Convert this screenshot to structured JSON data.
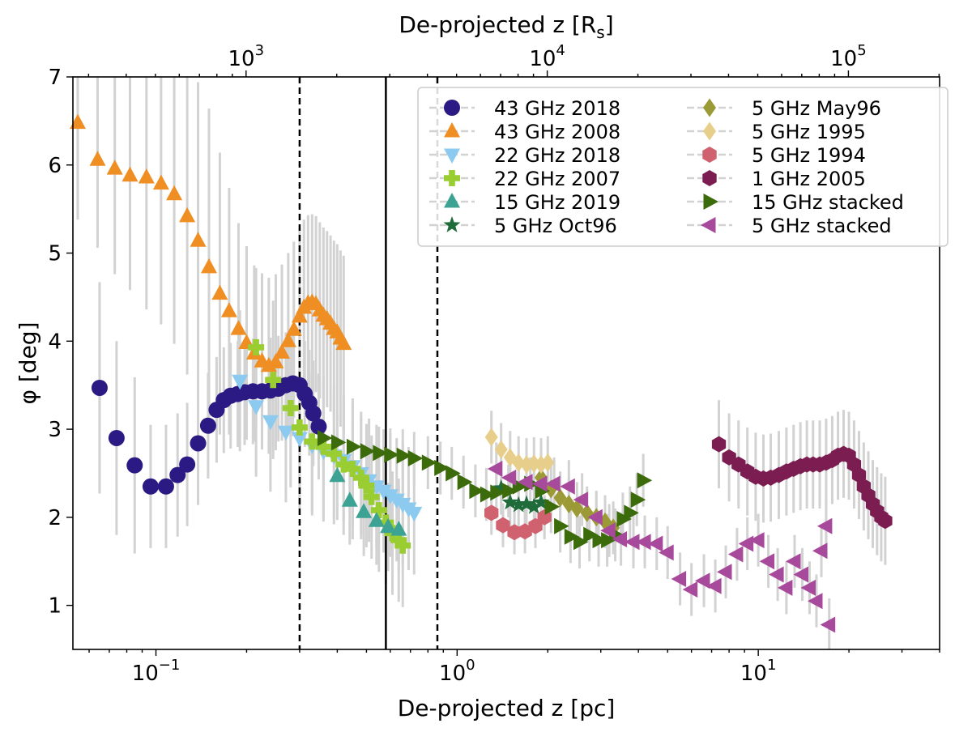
{
  "chart_data": {
    "type": "scatter",
    "xlabel": "De-projected z [pc]",
    "x2label": "De-projected z [R",
    "x2label_sub": "s",
    "x2label_end": "]",
    "ylabel": "φ [deg]",
    "xscale": "log",
    "xlim": [
      0.053,
      40
    ],
    "ylim": [
      0.5,
      7
    ],
    "x2_per_x": 5020,
    "legend_position": "upper-right",
    "legend_columns": 2,
    "grid": false,
    "x_ticks": [
      {
        "v": 0.1,
        "b": "10",
        "e": "−1"
      },
      {
        "v": 1,
        "b": "10",
        "e": "0"
      },
      {
        "v": 10,
        "b": "10",
        "e": "1"
      }
    ],
    "x2_ticks": [
      {
        "v": 1000,
        "b": "10",
        "e": "3"
      },
      {
        "v": 10000,
        "b": "10",
        "e": "4"
      },
      {
        "v": 100000,
        "b": "10",
        "e": "5"
      }
    ],
    "y_ticks": [
      "1",
      "2",
      "3",
      "4",
      "5",
      "6",
      "7"
    ],
    "vlines": [
      {
        "x": 0.3,
        "style": "dashed"
      },
      {
        "x": 0.58,
        "style": "solid"
      },
      {
        "x": 0.86,
        "style": "dashed"
      }
    ],
    "series": [
      {
        "name": "43 GHz 2018",
        "marker": "circle",
        "color": "#2b1a84",
        "x": [
          0.065,
          0.074,
          0.085,
          0.096,
          0.108,
          0.118,
          0.127,
          0.138,
          0.149,
          0.159,
          0.168,
          0.177,
          0.187,
          0.197,
          0.21,
          0.225,
          0.24,
          0.255,
          0.27,
          0.285,
          0.3,
          0.312,
          0.323,
          0.333,
          0.347
        ],
        "y": [
          3.47,
          2.9,
          2.59,
          2.35,
          2.35,
          2.48,
          2.6,
          2.84,
          3.04,
          3.22,
          3.33,
          3.38,
          3.4,
          3.42,
          3.43,
          3.43,
          3.44,
          3.46,
          3.5,
          3.52,
          3.5,
          3.4,
          3.3,
          3.18,
          3.03
        ],
        "err": [
          1.2,
          1.1,
          1.0,
          0.7,
          0.7,
          0.7,
          0.7,
          0.7,
          0.6,
          0.6,
          0.6,
          0.6,
          0.6,
          0.6,
          0.6,
          0.6,
          0.6,
          0.6,
          0.6,
          0.6,
          0.6,
          0.6,
          0.6,
          0.6,
          0.6
        ]
      },
      {
        "name": "43 GHz 2008",
        "marker": "triangle-up",
        "color": "#ef8e22",
        "x": [
          0.055,
          0.064,
          0.073,
          0.082,
          0.093,
          0.104,
          0.115,
          0.127,
          0.138,
          0.15,
          0.163,
          0.175,
          0.188,
          0.2,
          0.212,
          0.225,
          0.237,
          0.25,
          0.262,
          0.275,
          0.287,
          0.3,
          0.31,
          0.32,
          0.33,
          0.34,
          0.35,
          0.36,
          0.37,
          0.38,
          0.39,
          0.4,
          0.41,
          0.42
        ],
        "y": [
          6.48,
          6.06,
          5.96,
          5.88,
          5.86,
          5.79,
          5.67,
          5.42,
          5.14,
          4.84,
          4.54,
          4.34,
          4.14,
          3.98,
          3.86,
          3.77,
          3.72,
          3.76,
          3.87,
          4.0,
          4.13,
          4.28,
          4.38,
          4.43,
          4.44,
          4.42,
          4.35,
          4.29,
          4.25,
          4.2,
          4.14,
          4.1,
          4.03,
          3.97
        ],
        "err": [
          1.1,
          1.0,
          1.2,
          1.3,
          1.5,
          1.6,
          1.7,
          1.8,
          1.8,
          1.8,
          1.6,
          1.4,
          1.2,
          1.1,
          1.0,
          1.0,
          1.0,
          1.0,
          1.0,
          1.0,
          1.0,
          1.0,
          1.0,
          1.0,
          1.0,
          1.0,
          1.0,
          1.0,
          1.0,
          1.0,
          1.0,
          1.0,
          1.0,
          1.0
        ]
      },
      {
        "name": "22 GHz 2018",
        "marker": "triangle-down",
        "color": "#8ccaf0",
        "x": [
          0.19,
          0.215,
          0.24,
          0.27,
          0.3,
          0.33,
          0.36,
          0.39,
          0.42,
          0.45,
          0.48,
          0.51,
          0.54,
          0.57,
          0.6,
          0.63,
          0.66,
          0.69,
          0.72
        ],
        "y": [
          3.55,
          3.26,
          3.09,
          2.97,
          2.9,
          2.82,
          2.75,
          2.7,
          2.65,
          2.58,
          2.5,
          2.42,
          2.35,
          2.3,
          2.25,
          2.2,
          2.15,
          2.1,
          2.05
        ],
        "err": [
          0.8,
          0.8,
          0.8,
          0.8,
          0.8,
          0.8,
          0.8,
          0.7,
          0.7,
          0.7,
          0.7,
          0.7,
          0.7,
          0.7,
          0.7,
          0.7,
          0.7,
          0.7,
          0.7
        ]
      },
      {
        "name": "22 GHz 2007",
        "marker": "plus",
        "color": "#9acd32",
        "x": [
          0.215,
          0.245,
          0.28,
          0.3,
          0.33,
          0.36,
          0.39,
          0.42,
          0.45,
          0.48,
          0.5,
          0.52,
          0.55,
          0.58,
          0.61,
          0.64,
          0.66
        ],
        "y": [
          3.93,
          3.56,
          3.24,
          3.02,
          2.86,
          2.8,
          2.72,
          2.6,
          2.55,
          2.45,
          2.36,
          2.23,
          2.08,
          1.94,
          1.82,
          1.74,
          1.68
        ],
        "err": [
          0.9,
          0.9,
          0.9,
          0.8,
          0.8,
          0.8,
          0.8,
          0.8,
          0.8,
          0.7,
          0.7,
          0.7,
          0.7,
          0.7,
          0.7,
          0.7,
          0.7
        ]
      },
      {
        "name": "15 GHz 2019",
        "marker": "triangle-up",
        "color": "#3ca394",
        "x": [
          0.4,
          0.44,
          0.49,
          0.54,
          0.59,
          0.64
        ],
        "y": [
          2.47,
          2.19,
          2.06,
          1.96,
          1.89,
          1.86
        ],
        "err": [
          0.5,
          0.5,
          0.5,
          0.5,
          0.5,
          0.5
        ]
      },
      {
        "name": "5 GHz Oct96",
        "marker": "star",
        "color": "#1f6b3a",
        "x": [
          1.4,
          1.5,
          1.6,
          1.7,
          1.8,
          1.9
        ],
        "y": [
          2.33,
          2.17,
          2.14,
          2.15,
          2.12,
          2.17
        ],
        "err": [
          0.3,
          0.3,
          0.3,
          0.3,
          0.3,
          0.3
        ]
      },
      {
        "name": "5 GHz May96",
        "marker": "diamond",
        "color": "#9c9a36",
        "x": [
          1.9,
          2.05,
          2.2,
          2.35,
          2.5,
          2.7,
          2.9,
          3.1,
          3.3
        ],
        "y": [
          2.45,
          2.32,
          2.22,
          2.15,
          2.1,
          2.05,
          2.0,
          1.95,
          1.88
        ],
        "err": [
          0.3,
          0.3,
          0.3,
          0.3,
          0.3,
          0.3,
          0.3,
          0.3,
          0.3
        ]
      },
      {
        "name": "5 GHz 1995",
        "marker": "diamond",
        "color": "#e7cf8b",
        "x": [
          1.3,
          1.4,
          1.5,
          1.6,
          1.7,
          1.8,
          1.9,
          2.0
        ],
        "y": [
          2.91,
          2.77,
          2.68,
          2.62,
          2.6,
          2.61,
          2.6,
          2.62
        ],
        "err": [
          0.3,
          0.3,
          0.3,
          0.3,
          0.3,
          0.3,
          0.3,
          0.3
        ]
      },
      {
        "name": "5 GHz 1994",
        "marker": "hexagon",
        "color": "#d0616e",
        "x": [
          1.3,
          1.42,
          1.55,
          1.68,
          1.82,
          1.95
        ],
        "y": [
          2.05,
          1.91,
          1.83,
          1.84,
          1.9,
          2.0
        ],
        "err": [
          0.25,
          0.25,
          0.25,
          0.25,
          0.25,
          0.25
        ]
      },
      {
        "name": "1 GHz 2005",
        "marker": "hexagon",
        "color": "#7c1d51",
        "x": [
          7.4,
          8.0,
          8.6,
          9.2,
          9.8,
          10.4,
          11.0,
          11.7,
          12.4,
          13.1,
          13.8,
          14.5,
          15.2,
          16.0,
          16.8,
          17.6,
          18.4,
          19.2,
          20.0,
          20.8,
          21.6,
          22.4,
          23.2,
          24.0,
          24.8,
          25.6,
          26.4
        ],
        "y": [
          2.83,
          2.68,
          2.6,
          2.52,
          2.46,
          2.44,
          2.45,
          2.48,
          2.52,
          2.55,
          2.58,
          2.6,
          2.6,
          2.6,
          2.62,
          2.65,
          2.7,
          2.72,
          2.7,
          2.6,
          2.48,
          2.35,
          2.25,
          2.15,
          2.07,
          2.0,
          1.96
        ],
        "err": [
          0.5,
          0.5,
          0.5,
          0.5,
          0.5,
          0.5,
          0.5,
          0.5,
          0.5,
          0.5,
          0.5,
          0.5,
          0.5,
          0.5,
          0.5,
          0.5,
          0.5,
          0.5,
          0.5,
          0.5,
          0.5,
          0.5,
          0.5,
          0.5,
          0.5,
          0.5,
          0.5
        ]
      },
      {
        "name": "15 GHz stacked",
        "marker": "triangle-right",
        "color": "#3b6b0a",
        "x": [
          0.36,
          0.4,
          0.45,
          0.5,
          0.55,
          0.6,
          0.66,
          0.72,
          0.8,
          0.88,
          0.96,
          1.05,
          1.15,
          1.25,
          1.35,
          1.48,
          1.6,
          1.75,
          1.9,
          2.05,
          2.2,
          2.38,
          2.55,
          2.75,
          2.95,
          3.15,
          3.35,
          3.55,
          3.75,
          3.95,
          4.15
        ],
        "y": [
          2.9,
          2.85,
          2.8,
          2.75,
          2.73,
          2.71,
          2.7,
          2.67,
          2.62,
          2.56,
          2.5,
          2.4,
          2.3,
          2.26,
          2.28,
          2.3,
          2.35,
          2.38,
          2.3,
          2.12,
          1.9,
          1.78,
          1.72,
          1.8,
          1.74,
          1.74,
          1.8,
          1.98,
          2.05,
          2.2,
          2.42
        ],
        "err": [
          0.3,
          0.3,
          0.3,
          0.3,
          0.3,
          0.3,
          0.3,
          0.3,
          0.3,
          0.3,
          0.3,
          0.3,
          0.3,
          0.3,
          0.3,
          0.3,
          0.3,
          0.3,
          0.3,
          0.3,
          0.3,
          0.3,
          0.3,
          0.3,
          0.3,
          0.3,
          0.3,
          0.3,
          0.3,
          0.3,
          0.3
        ]
      },
      {
        "name": "5 GHz stacked",
        "marker": "triangle-left",
        "color": "#a84a9c",
        "x": [
          1.35,
          1.5,
          1.7,
          1.9,
          2.1,
          2.35,
          2.6,
          2.9,
          3.2,
          3.5,
          3.85,
          4.2,
          4.6,
          5.0,
          5.5,
          6.0,
          6.6,
          7.2,
          7.8,
          8.5,
          9.2,
          10.0,
          10.8,
          11.6,
          12.4,
          13.2,
          14.0,
          14.8,
          15.6,
          16.2,
          16.8,
          17.2
        ],
        "y": [
          2.55,
          2.45,
          2.4,
          2.38,
          2.38,
          2.35,
          2.2,
          2.0,
          1.85,
          1.75,
          1.72,
          1.72,
          1.7,
          1.6,
          1.3,
          1.18,
          1.28,
          1.22,
          1.38,
          1.58,
          1.7,
          1.74,
          1.5,
          1.35,
          1.2,
          1.5,
          1.35,
          1.2,
          1.05,
          1.62,
          1.9,
          0.78
        ],
        "err": [
          0.3,
          0.3,
          0.3,
          0.3,
          0.3,
          0.3,
          0.3,
          0.3,
          0.3,
          0.3,
          0.3,
          0.3,
          0.3,
          0.3,
          0.3,
          0.3,
          0.3,
          0.3,
          0.3,
          0.3,
          0.3,
          0.3,
          0.3,
          0.3,
          0.3,
          0.3,
          0.3,
          0.3,
          0.3,
          0.3,
          0.3,
          0.3
        ]
      }
    ]
  }
}
